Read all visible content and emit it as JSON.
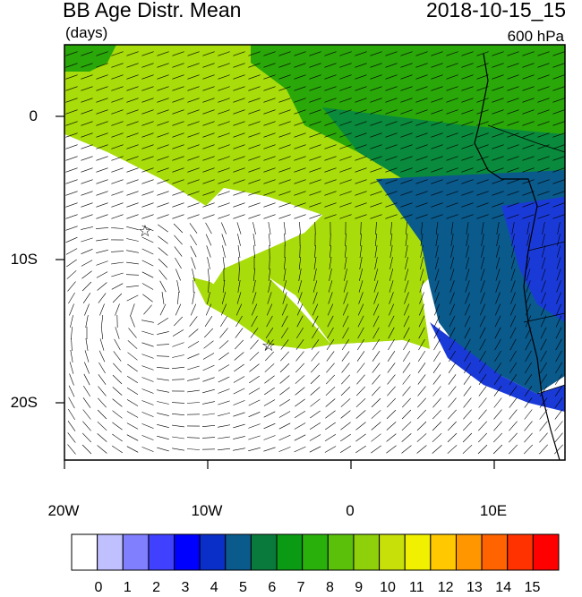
{
  "title": {
    "left": "BB Age Distr. Mean",
    "units": "(days)",
    "right": "2018-10-15_15",
    "level": "600 hPa"
  },
  "axes": {
    "y_ticks": [
      "0",
      "10S",
      "20S"
    ],
    "x_ticks": [
      "20W",
      "10W",
      "0",
      "10E"
    ]
  },
  "colorbar": {
    "labels": [
      "0",
      "1",
      "2",
      "3",
      "4",
      "5",
      "6",
      "7",
      "8",
      "9",
      "10",
      "11",
      "12",
      "13",
      "14",
      "15"
    ],
    "colors": [
      "#ffffff",
      "#c0c0ff",
      "#8080ff",
      "#4040ff",
      "#0000ff",
      "#0a2ec8",
      "#0a5a8c",
      "#0a7a3c",
      "#0a9a14",
      "#2ab00a",
      "#5ac00a",
      "#8ed00a",
      "#c8e00a",
      "#f0f000",
      "#ffc800",
      "#ff9600",
      "#ff6400",
      "#ff3200",
      "#ff0000"
    ]
  },
  "map": {
    "lon_range": [
      -20,
      15
    ],
    "lat_range": [
      -24,
      5
    ],
    "markers": [
      "star",
      "star"
    ]
  }
}
